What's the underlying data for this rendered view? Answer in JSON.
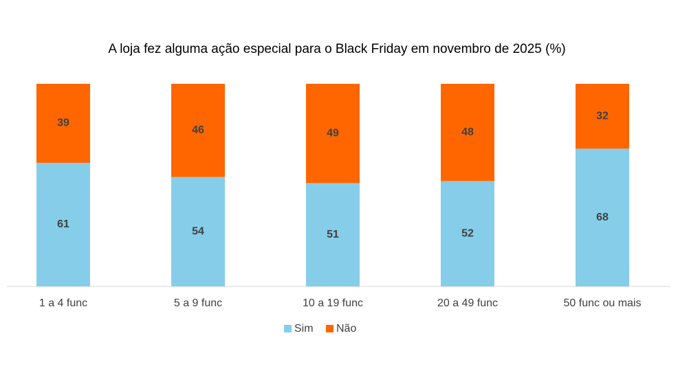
{
  "chart_data": {
    "type": "stacked-bar",
    "title": "A loja fez alguma ação especial para o Black Friday em novembro de 2025 (%)",
    "categories": [
      "1 a 4 func",
      "5 a 9 func",
      "10 a 19 func",
      "20 a 49 func",
      "50 func ou mais"
    ],
    "series": [
      {
        "name": "Sim",
        "color": "#86cdea",
        "values": [
          61,
          54,
          51,
          52,
          68
        ]
      },
      {
        "name": "Não",
        "color": "#ff6600",
        "values": [
          39,
          46,
          49,
          48,
          32
        ]
      }
    ],
    "ylim": [
      0,
      100
    ],
    "legend": "bottom"
  }
}
